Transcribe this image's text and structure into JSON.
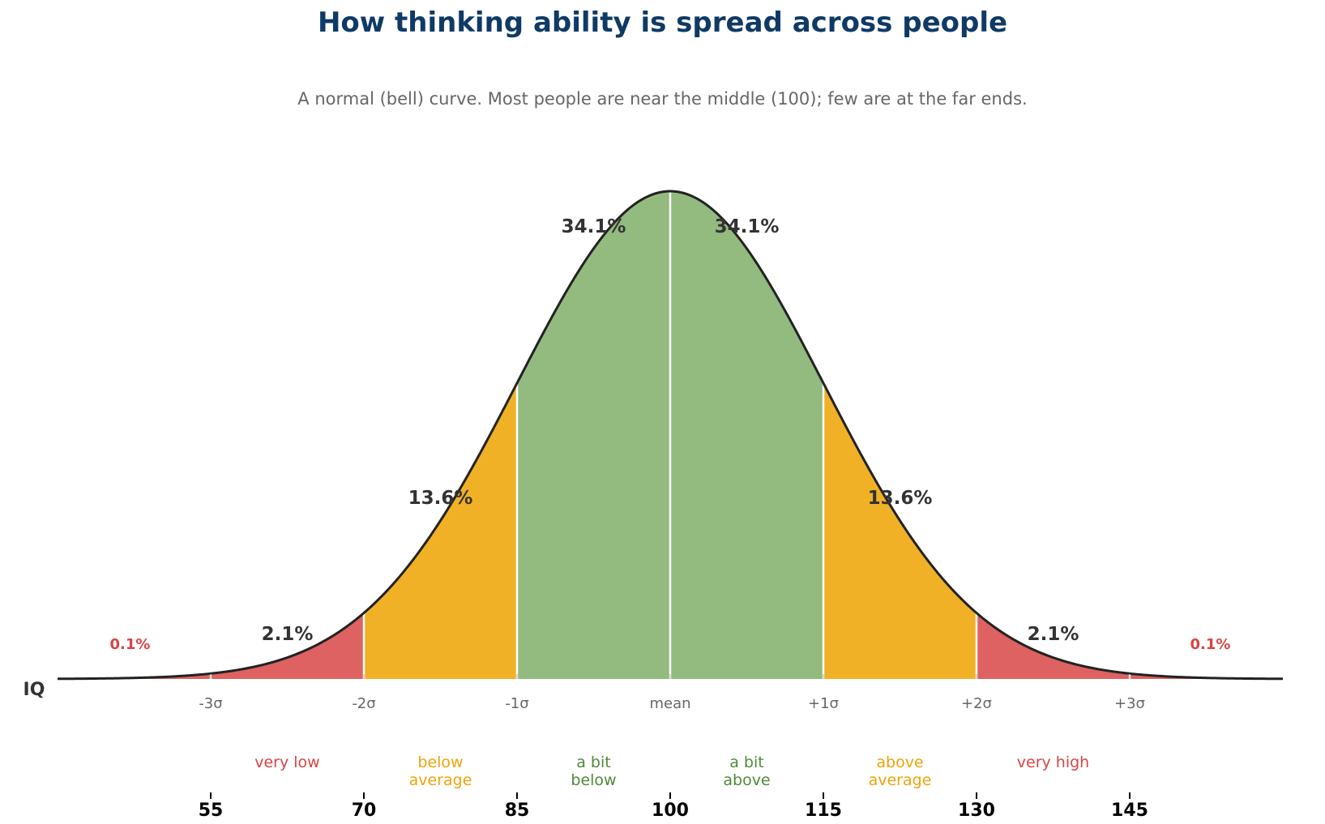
{
  "chart_data": {
    "type": "area",
    "title": "How thinking ability is spread across people",
    "subtitle": "A normal (bell) curve. Most people are near the middle (100); few are at the far ends.",
    "xlabel": "IQ",
    "ylabel": "",
    "distribution": {
      "mean": 100,
      "sd": 15
    },
    "xlim": [
      40,
      160
    ],
    "grid": false,
    "legend": "none",
    "iq_ticks": [
      55,
      70,
      85,
      100,
      115,
      130,
      145
    ],
    "sigma_ticks": [
      {
        "iq": 55,
        "label": "-3σ"
      },
      {
        "iq": 70,
        "label": "-2σ"
      },
      {
        "iq": 85,
        "label": "-1σ"
      },
      {
        "iq": 100,
        "label": "mean"
      },
      {
        "iq": 115,
        "label": "+1σ"
      },
      {
        "iq": 130,
        "label": "+2σ"
      },
      {
        "iq": 145,
        "label": "+3σ"
      }
    ],
    "regions": [
      {
        "from": 40,
        "to": 55,
        "percent": "0.1%",
        "color": "#dd6261"
      },
      {
        "from": 55,
        "to": 70,
        "percent": "2.1%",
        "category": "very low",
        "color": "#dd6261"
      },
      {
        "from": 70,
        "to": 85,
        "percent": "13.6%",
        "category": "below\naverage",
        "color": "#f0b127"
      },
      {
        "from": 85,
        "to": 100,
        "percent": "34.1%",
        "category": "a bit\nbelow",
        "color": "#93ba7f"
      },
      {
        "from": 100,
        "to": 115,
        "percent": "34.1%",
        "category": "a bit\nabove",
        "color": "#93ba7f"
      },
      {
        "from": 115,
        "to": 130,
        "percent": "13.6%",
        "category": "above\naverage",
        "color": "#f0b127"
      },
      {
        "from": 130,
        "to": 145,
        "percent": "2.1%",
        "category": "very high",
        "color": "#dd6261"
      },
      {
        "from": 145,
        "to": 160,
        "percent": "0.1%",
        "color": "#dd6261"
      }
    ],
    "colors": {
      "curve": "#222222",
      "separator": "#ffffff",
      "title": "#0f3a66",
      "tail_label": "#d64545",
      "very_text": "#d64545",
      "average_text": "#f0a30a",
      "bit_text": "#4f8a3a"
    }
  }
}
